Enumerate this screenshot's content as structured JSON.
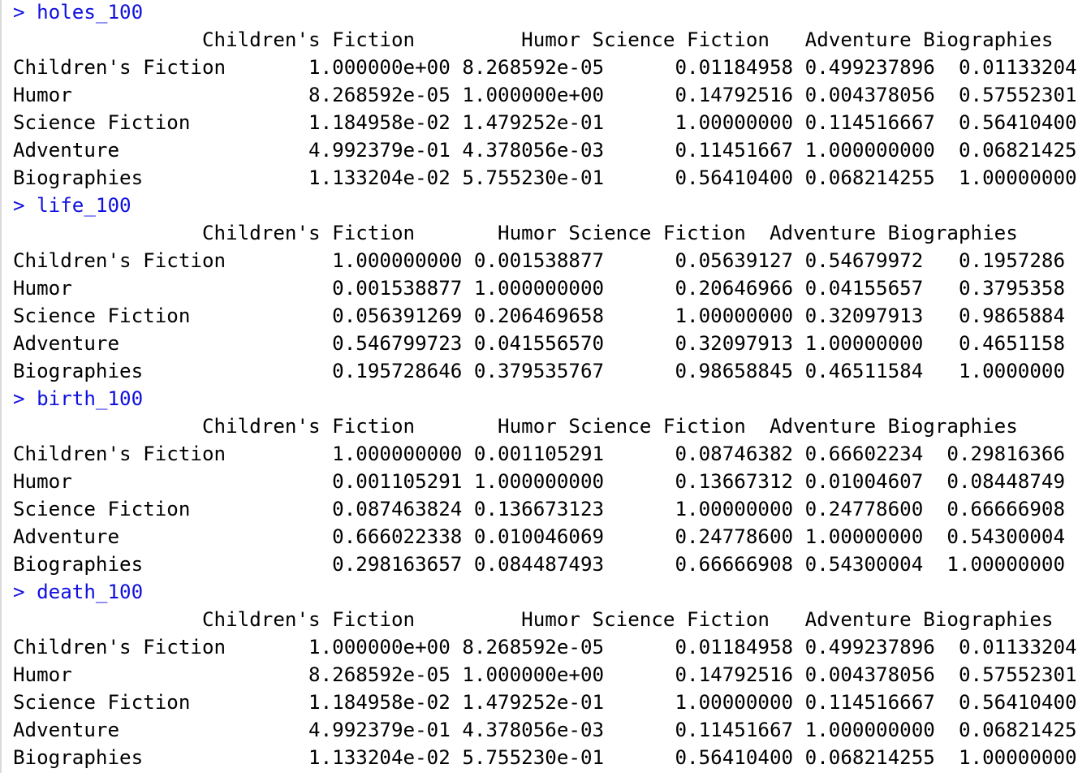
{
  "colors": {
    "command": "#1010e0",
    "output": "#000000",
    "background": "#ffffff"
  },
  "blocks": [
    {
      "command": "> holes_100",
      "header": "                Children's Fiction         Humor Science Fiction   Adventure Biographies",
      "rows": [
        "Children's Fiction       1.000000e+00 8.268592e-05      0.01184958 0.499237896  0.01133204",
        "Humor                    8.268592e-05 1.000000e+00      0.14792516 0.004378056  0.57552301",
        "Science Fiction          1.184958e-02 1.479252e-01      1.00000000 0.114516667  0.56410400",
        "Adventure                4.992379e-01 4.378056e-03      0.11451667 1.000000000  0.06821425",
        "Biographies              1.133204e-02 5.755230e-01      0.56410400 0.068214255  1.00000000"
      ]
    },
    {
      "command": "> life_100",
      "header": "                Children's Fiction       Humor Science Fiction  Adventure Biographies",
      "rows": [
        "Children's Fiction         1.000000000 0.001538877      0.05639127 0.54679972   0.1957286",
        "Humor                      0.001538877 1.000000000      0.20646966 0.04155657   0.3795358",
        "Science Fiction            0.056391269 0.206469658      1.00000000 0.32097913   0.9865884",
        "Adventure                  0.546799723 0.041556570      0.32097913 1.00000000   0.4651158",
        "Biographies                0.195728646 0.379535767      0.98658845 0.46511584   1.0000000"
      ]
    },
    {
      "command": "> birth_100",
      "header": "                Children's Fiction       Humor Science Fiction  Adventure Biographies",
      "rows": [
        "Children's Fiction         1.000000000 0.001105291      0.08746382 0.66602234  0.29816366",
        "Humor                      0.001105291 1.000000000      0.13667312 0.01004607  0.08448749",
        "Science Fiction            0.087463824 0.136673123      1.00000000 0.24778600  0.66666908",
        "Adventure                  0.666022338 0.010046069      0.24778600 1.00000000  0.54300004",
        "Biographies                0.298163657 0.084487493      0.66666908 0.54300004  1.00000000"
      ]
    },
    {
      "command": "> death_100",
      "header": "                Children's Fiction         Humor Science Fiction   Adventure Biographies",
      "rows": [
        "Children's Fiction       1.000000e+00 8.268592e-05      0.01184958 0.499237896  0.01133204",
        "Humor                    8.268592e-05 1.000000e+00      0.14792516 0.004378056  0.57552301",
        "Science Fiction          1.184958e-02 1.479252e-01      1.00000000 0.114516667  0.56410400",
        "Adventure                4.992379e-01 4.378056e-03      0.11451667 1.000000000  0.06821425",
        "Biographies              1.133204e-02 5.755230e-01      0.56410400 0.068214255  1.00000000"
      ]
    }
  ]
}
